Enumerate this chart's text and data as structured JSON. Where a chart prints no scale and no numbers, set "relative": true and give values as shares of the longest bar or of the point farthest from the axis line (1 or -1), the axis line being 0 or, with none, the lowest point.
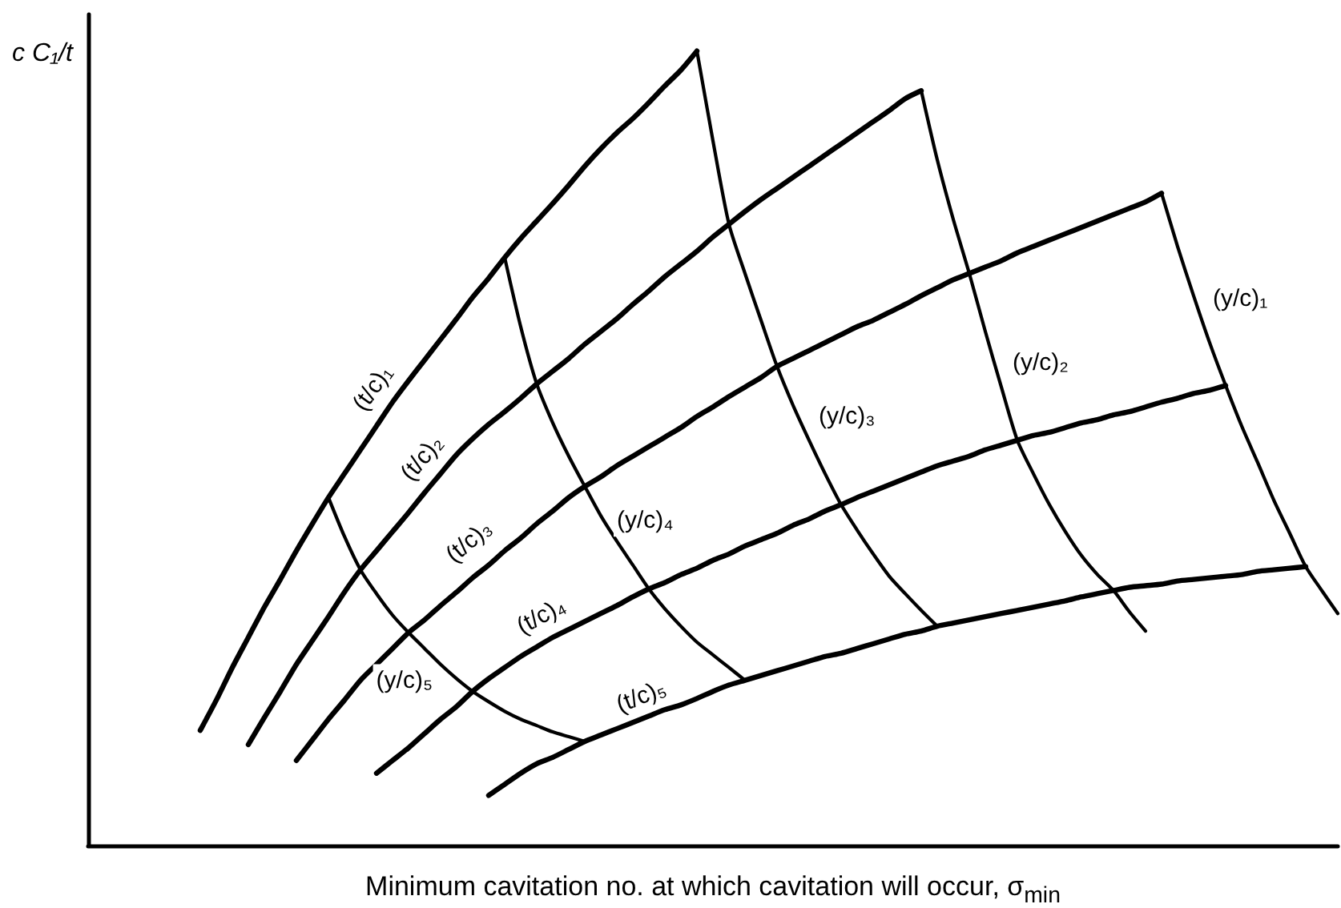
{
  "chart_data": {
    "type": "line",
    "xlabel": "Minimum cavitation no. at which cavitation will occur, σ$_{min}$",
    "ylabel": "c C₁/t",
    "relative": true,
    "marker": "none",
    "line_style": "solid",
    "categories": [
      null,
      null,
      null,
      null,
      null,
      null,
      null,
      null,
      null,
      null,
      null,
      null,
      null,
      null,
      null,
      null,
      null,
      null,
      null,
      null,
      null,
      null,
      null,
      null,
      null,
      null,
      null,
      null,
      null,
      null,
      null,
      null,
      null,
      null,
      null,
      null,
      null,
      null,
      null,
      null,
      null,
      null,
      null,
      null,
      null,
      null,
      null,
      null,
      null,
      null,
      null,
      null,
      null,
      null,
      null,
      null,
      null,
      null,
      null,
      null,
      null,
      null,
      null,
      null,
      null,
      null,
      null,
      null,
      null,
      null,
      null,
      null,
      null,
      null,
      null,
      null,
      null,
      null,
      null
    ],
    "series": [
      {
        "name": "(t/c)₁",
        "color": "#000000",
        "values": [
          null,
          null,
          null,
          null,
          null,
          null,
          null,
          0.145,
          0.183,
          0.224,
          0.262,
          0.3,
          0.335,
          0.371,
          0.405,
          0.438,
          0.468,
          0.498,
          0.528,
          0.558,
          0.585,
          0.611,
          0.637,
          0.663,
          0.69,
          0.714,
          0.74,
          0.764,
          0.786,
          0.808,
          0.831,
          0.855,
          0.877,
          0.897,
          0.915,
          0.935,
          0.956,
          0.976,
          1,
          null,
          null,
          null,
          null,
          null,
          null,
          null,
          null,
          null,
          null,
          null,
          null,
          null,
          null,
          null,
          null,
          null,
          null,
          null,
          null,
          null,
          null,
          null,
          null,
          null,
          null,
          null,
          null,
          null,
          null,
          null,
          null,
          null,
          null,
          null,
          null,
          null,
          null,
          null,
          null
        ]
      },
      {
        "name": "(t/c)₂",
        "color": "#000000",
        "values": [
          null,
          null,
          null,
          null,
          null,
          null,
          null,
          null,
          null,
          null,
          0.127,
          0.161,
          0.194,
          0.228,
          0.258,
          0.288,
          0.319,
          0.347,
          0.371,
          0.395,
          0.419,
          0.444,
          0.468,
          0.492,
          0.512,
          0.53,
          0.546,
          0.563,
          0.581,
          0.597,
          0.613,
          0.631,
          0.647,
          0.663,
          0.681,
          0.698,
          0.716,
          0.732,
          0.748,
          0.766,
          0.782,
          0.798,
          0.813,
          0.827,
          0.841,
          0.855,
          0.869,
          0.883,
          0.897,
          0.911,
          0.925,
          0.94,
          0.95,
          null,
          null,
          null,
          null,
          null,
          null,
          null,
          null,
          null,
          null,
          null,
          null,
          null,
          null,
          null,
          null,
          null,
          null,
          null,
          null,
          null,
          null,
          null,
          null,
          null,
          null
        ]
      },
      {
        "name": "(t/c)₃",
        "color": "#000000",
        "values": [
          null,
          null,
          null,
          null,
          null,
          null,
          null,
          null,
          null,
          null,
          null,
          null,
          null,
          0.107,
          0.133,
          0.159,
          0.183,
          0.208,
          0.228,
          0.248,
          0.268,
          0.284,
          0.302,
          0.319,
          0.337,
          0.353,
          0.371,
          0.387,
          0.405,
          0.421,
          0.438,
          0.452,
          0.464,
          0.478,
          0.49,
          0.502,
          0.514,
          0.526,
          0.54,
          0.552,
          0.565,
          0.577,
          0.589,
          0.603,
          0.613,
          0.623,
          0.633,
          0.643,
          0.653,
          0.661,
          0.671,
          0.681,
          0.692,
          0.702,
          0.712,
          0.72,
          0.728,
          0.736,
          0.746,
          0.754,
          0.762,
          0.77,
          0.778,
          0.786,
          0.794,
          0.802,
          0.81,
          0.821,
          null,
          null,
          null,
          null,
          null,
          null,
          null,
          null,
          null,
          null,
          null
        ]
      },
      {
        "name": "(t/c)₄",
        "color": "#000000",
        "values": [
          null,
          null,
          null,
          null,
          null,
          null,
          null,
          null,
          null,
          null,
          null,
          null,
          null,
          null,
          null,
          null,
          null,
          null,
          0.091,
          0.107,
          0.123,
          0.141,
          0.159,
          0.175,
          0.194,
          0.21,
          0.224,
          0.238,
          0.25,
          0.262,
          0.272,
          0.282,
          0.292,
          0.302,
          0.313,
          0.323,
          0.331,
          0.341,
          0.349,
          0.359,
          0.367,
          0.377,
          0.385,
          0.393,
          0.403,
          0.411,
          0.421,
          0.429,
          0.438,
          0.446,
          0.454,
          0.462,
          0.47,
          0.478,
          0.484,
          0.49,
          0.498,
          0.504,
          0.51,
          0.516,
          0.52,
          0.526,
          0.532,
          0.536,
          0.542,
          0.546,
          0.552,
          0.558,
          0.563,
          0.569,
          0.573,
          0.579,
          null,
          null,
          null,
          null,
          null,
          null,
          null
        ]
      },
      {
        "name": "(t/c)₅",
        "color": "#000000",
        "values": [
          null,
          null,
          null,
          null,
          null,
          null,
          null,
          null,
          null,
          null,
          null,
          null,
          null,
          null,
          null,
          null,
          null,
          null,
          null,
          null,
          null,
          null,
          null,
          null,
          null,
          0.063,
          0.077,
          0.091,
          0.103,
          0.111,
          0.121,
          0.131,
          0.139,
          0.147,
          0.155,
          0.163,
          0.171,
          0.177,
          0.185,
          0.194,
          0.202,
          0.208,
          0.214,
          0.22,
          0.226,
          0.232,
          0.238,
          0.242,
          0.248,
          0.254,
          0.26,
          0.266,
          0.27,
          0.276,
          0.28,
          0.284,
          0.288,
          0.292,
          0.296,
          0.3,
          0.304,
          0.308,
          0.313,
          0.317,
          0.321,
          0.325,
          0.327,
          0.329,
          0.333,
          0.335,
          0.337,
          0.339,
          0.341,
          0.345,
          0.347,
          0.349,
          0.351,
          null,
          null
        ]
      },
      {
        "name": "(y/c)₁",
        "color": "#000000",
        "values": [
          null,
          null,
          null,
          null,
          null,
          null,
          null,
          null,
          null,
          null,
          null,
          null,
          null,
          null,
          null,
          null,
          null,
          null,
          null,
          null,
          null,
          null,
          null,
          null,
          null,
          null,
          null,
          null,
          null,
          null,
          null,
          null,
          null,
          null,
          null,
          null,
          null,
          null,
          null,
          null,
          null,
          null,
          null,
          null,
          null,
          null,
          null,
          null,
          null,
          null,
          null,
          null,
          null,
          null,
          null,
          null,
          null,
          null,
          null,
          null,
          null,
          null,
          null,
          null,
          null,
          null,
          null,
          0.821,
          0.754,
          0.692,
          0.633,
          0.579,
          0.528,
          0.482,
          0.435,
          0.393,
          0.351,
          0.321,
          0.292
        ]
      },
      {
        "name": "(y/c)₂",
        "color": "#000000",
        "values": [
          null,
          null,
          null,
          null,
          null,
          null,
          null,
          null,
          null,
          null,
          null,
          null,
          null,
          null,
          null,
          null,
          null,
          null,
          null,
          null,
          null,
          null,
          null,
          null,
          null,
          null,
          null,
          null,
          null,
          null,
          null,
          null,
          null,
          null,
          null,
          null,
          null,
          null,
          null,
          null,
          null,
          null,
          null,
          null,
          null,
          null,
          null,
          null,
          null,
          null,
          null,
          null,
          0.95,
          0.863,
          0.788,
          0.72,
          0.647,
          0.577,
          0.51,
          0.468,
          0.429,
          0.395,
          0.365,
          0.341,
          0.321,
          0.294,
          0.27,
          null,
          null,
          null,
          null,
          null,
          null,
          null,
          null,
          null,
          null,
          null,
          null
        ]
      },
      {
        "name": "(y/c)₃",
        "color": "#000000",
        "values": [
          null,
          null,
          null,
          null,
          null,
          null,
          null,
          null,
          null,
          null,
          null,
          null,
          null,
          null,
          null,
          null,
          null,
          null,
          null,
          null,
          null,
          null,
          null,
          null,
          null,
          null,
          null,
          null,
          null,
          null,
          null,
          null,
          null,
          null,
          null,
          null,
          null,
          null,
          1,
          0.887,
          0.782,
          0.72,
          0.661,
          0.603,
          0.554,
          0.51,
          0.468,
          0.429,
          0.397,
          0.367,
          0.339,
          0.317,
          0.296,
          0.276,
          null,
          null,
          null,
          null,
          null,
          null,
          null,
          null,
          null,
          null,
          null,
          null,
          null,
          null,
          null,
          null,
          null,
          null,
          null,
          null,
          null,
          null,
          null,
          null,
          null
        ]
      },
      {
        "name": "(y/c)₄",
        "color": "#000000",
        "values": [
          null,
          null,
          null,
          null,
          null,
          null,
          null,
          null,
          null,
          null,
          null,
          null,
          null,
          null,
          null,
          null,
          null,
          null,
          null,
          null,
          null,
          null,
          null,
          null,
          null,
          null,
          0.74,
          0.653,
          0.581,
          0.532,
          0.49,
          0.452,
          0.415,
          0.383,
          0.353,
          0.323,
          0.298,
          0.276,
          0.256,
          0.24,
          0.224,
          0.208,
          null,
          null,
          null,
          null,
          null,
          null,
          null,
          null,
          null,
          null,
          null,
          null,
          null,
          null,
          null,
          null,
          null,
          null,
          null,
          null,
          null,
          null,
          null,
          null,
          null,
          null,
          null,
          null,
          null,
          null,
          null,
          null,
          null,
          null,
          null,
          null,
          null
        ]
      },
      {
        "name": "(y/c)₅",
        "color": "#000000",
        "values": [
          null,
          null,
          null,
          null,
          null,
          null,
          null,
          null,
          null,
          null,
          null,
          null,
          null,
          null,
          null,
          0.438,
          0.389,
          0.347,
          0.317,
          0.29,
          0.268,
          0.248,
          0.228,
          0.21,
          0.194,
          0.181,
          0.169,
          0.159,
          0.151,
          0.143,
          0.137,
          0.131,
          null,
          null,
          null,
          null,
          null,
          null,
          null,
          null,
          null,
          null,
          null,
          null,
          null,
          null,
          null,
          null,
          null,
          null,
          null,
          null,
          null,
          null,
          null,
          null,
          null,
          null,
          null,
          null,
          null,
          null,
          null,
          null,
          null,
          null,
          null,
          null,
          null,
          null,
          null,
          null,
          null,
          null,
          null,
          null,
          null,
          null,
          null
        ]
      }
    ]
  }
}
